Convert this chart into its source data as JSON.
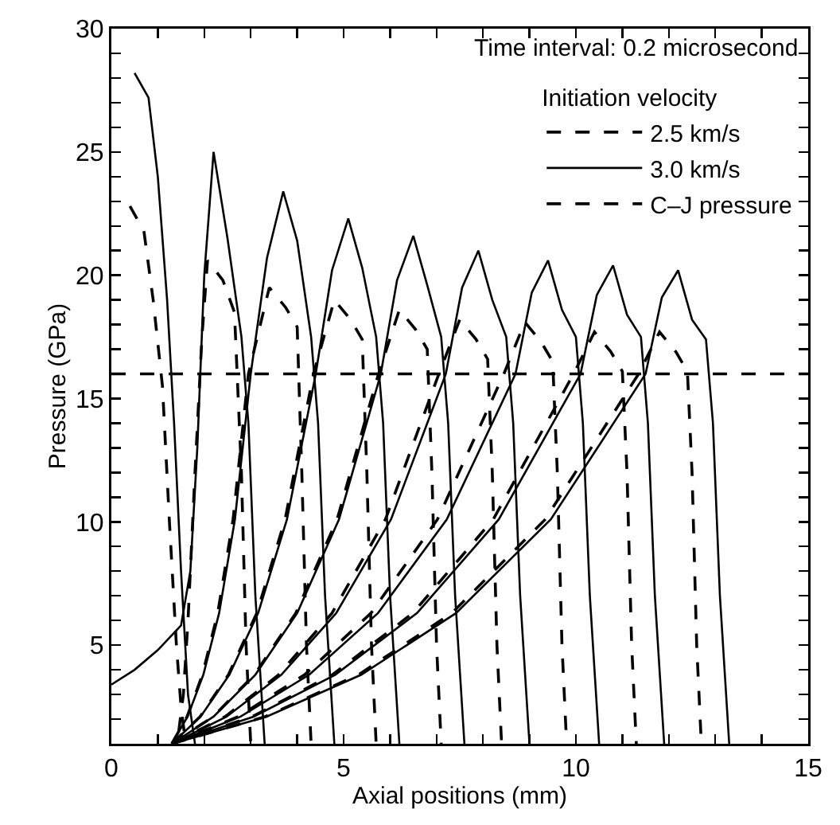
{
  "chart_data": {
    "type": "line",
    "xlabel": "Axial positions (mm)",
    "ylabel": "Pressure (GPa)",
    "legend_title": "Initiation velocity",
    "legend": "top right",
    "grid": false,
    "marker": "none",
    "annotations": [
      "Time interval: 0.2 microsecond"
    ],
    "xlim": [
      0,
      15
    ],
    "ylim": [
      1,
      30
    ],
    "xticks": [
      0,
      {
        "value": 1,
        "label": null
      },
      {
        "value": 2,
        "label": null
      },
      {
        "value": 3,
        "label": null
      },
      {
        "value": 4,
        "label": null
      },
      5,
      {
        "value": 6,
        "label": null
      },
      {
        "value": 7,
        "label": null
      },
      {
        "value": 8,
        "label": null
      },
      {
        "value": 9,
        "label": null
      },
      10,
      {
        "value": 11,
        "label": null
      },
      {
        "value": 12,
        "label": null
      },
      {
        "value": 13,
        "label": null
      },
      {
        "value": 14,
        "label": null
      },
      15
    ],
    "yticks": [
      {
        "value": 2,
        "label": null
      },
      {
        "value": 3,
        "label": null
      },
      {
        "value": 4,
        "label": null
      },
      5,
      {
        "value": 6,
        "label": null
      },
      {
        "value": 7,
        "label": null
      },
      {
        "value": 8,
        "label": null
      },
      {
        "value": 9,
        "label": null
      },
      10,
      {
        "value": 11,
        "label": null
      },
      {
        "value": 12,
        "label": null
      },
      {
        "value": 13,
        "label": null
      },
      {
        "value": 14,
        "label": null
      },
      15,
      {
        "value": 16,
        "label": null
      },
      {
        "value": 17,
        "label": null
      },
      {
        "value": 18,
        "label": null
      },
      {
        "value": 19,
        "label": null
      },
      20,
      {
        "value": 21,
        "label": null
      },
      {
        "value": 22,
        "label": null
      },
      {
        "value": 23,
        "label": null
      },
      {
        "value": 24,
        "label": null
      },
      25,
      {
        "value": 26,
        "label": null
      },
      {
        "value": 27,
        "label": null
      },
      {
        "value": 28,
        "label": null
      },
      {
        "value": 29,
        "label": null
      },
      30
    ],
    "series": [
      {
        "name": "2.5 km/s",
        "color": "#000000",
        "line_style": "dashed",
        "x": [
          0.4,
          0.7,
          0.9,
          1.1,
          1.25,
          1.4,
          1.5,
          1.6
        ],
        "values": [
          22.8,
          21.8,
          19,
          15.5,
          10,
          5,
          2.5,
          1
        ]
      },
      {
        "color": "#000000",
        "line_style": "dashed",
        "x": [
          1.45,
          1.55,
          1.65,
          1.8,
          1.95,
          2.07,
          2.4,
          2.65,
          2.8,
          2.9,
          3.0
        ],
        "values": [
          1.5,
          3,
          6,
          12,
          17.5,
          20.6,
          19.8,
          18.5,
          12,
          5,
          1
        ]
      },
      {
        "color": "#000000",
        "line_style": "dashed",
        "x": [
          1.3,
          1.63,
          1.96,
          2.29,
          2.62,
          2.95,
          3.4,
          3.75,
          4.0,
          4.1,
          4.2,
          4.3
        ],
        "values": [
          1,
          2.1,
          3.8,
          6.3,
          10.1,
          16,
          19.5,
          18.7,
          17.9,
          12,
          5,
          1
        ]
      },
      {
        "color": "#000000",
        "line_style": "dashed",
        "x": [
          1.3,
          1.91,
          2.52,
          3.13,
          3.74,
          4.35,
          4.8,
          5.15,
          5.4,
          5.5,
          5.6,
          5.7
        ],
        "values": [
          1,
          2.1,
          3.8,
          6.3,
          10.1,
          16,
          19.0,
          18.2,
          17.4,
          12,
          5,
          1
        ]
      },
      {
        "color": "#000000",
        "line_style": "dashed",
        "x": [
          1.3,
          2.19,
          3.08,
          3.97,
          4.86,
          5.75,
          6.2,
          6.55,
          6.8,
          6.9,
          7.0,
          7.1
        ],
        "values": [
          1,
          2.1,
          3.8,
          6.3,
          10.1,
          16,
          18.6,
          17.8,
          17.0,
          12,
          5,
          1
        ]
      },
      {
        "color": "#000000",
        "line_style": "dashed",
        "x": [
          1.3,
          2.45,
          3.6,
          4.75,
          5.9,
          7.05,
          7.5,
          7.85,
          8.1,
          8.2,
          8.3,
          8.4
        ],
        "values": [
          1,
          2.1,
          3.8,
          6.3,
          10.1,
          16,
          18.2,
          17.4,
          16.6,
          12,
          5,
          1
        ]
      },
      {
        "color": "#000000",
        "line_style": "dashed",
        "x": [
          1.3,
          2.73,
          4.16,
          5.59,
          7.02,
          8.45,
          8.9,
          9.25,
          9.5,
          9.6,
          9.7,
          9.8
        ],
        "values": [
          1,
          2.1,
          3.8,
          6.3,
          10.1,
          16,
          18.1,
          17.3,
          16.5,
          12,
          5,
          1
        ]
      },
      {
        "color": "#000000",
        "line_style": "dashed",
        "x": [
          1.3,
          3.03,
          4.76,
          6.49,
          8.22,
          9.95,
          10.4,
          10.75,
          11.0,
          11.1,
          11.2,
          11.3
        ],
        "values": [
          1,
          2.1,
          3.8,
          6.3,
          10.1,
          16,
          17.7,
          16.9,
          16.1,
          12,
          5,
          1
        ]
      },
      {
        "color": "#000000",
        "line_style": "dashed",
        "x": [
          1.3,
          3.31,
          5.32,
          7.33,
          9.34,
          11.35,
          11.8,
          12.15,
          12.4,
          12.5,
          12.6,
          12.7
        ],
        "values": [
          1,
          2.1,
          3.8,
          6.3,
          10.1,
          16,
          17.7,
          16.9,
          16.1,
          12,
          5,
          1
        ]
      },
      {
        "name": "3.0 km/s",
        "color": "#000000",
        "line_style": "solid",
        "x": [
          0.5,
          0.8,
          1.0,
          1.2,
          1.35,
          1.5,
          1.65,
          1.8
        ],
        "values": [
          28.2,
          27.2,
          24,
          19,
          14,
          8,
          3,
          1
        ]
      },
      {
        "color": "#000000",
        "line_style": "solid",
        "x": [
          0,
          0.5,
          1.0,
          1.5,
          1.7,
          1.85,
          2.0,
          2.2,
          2.5,
          2.8,
          2.95,
          3.1,
          3.3
        ],
        "values": [
          3.4,
          4.0,
          4.8,
          5.8,
          8,
          13,
          20,
          25,
          21.5,
          17.5,
          14,
          7,
          1
        ]
      },
      {
        "color": "#000000",
        "line_style": "solid",
        "x": [
          1.3,
          1.64,
          1.98,
          2.32,
          2.66,
          3.0,
          3.35,
          3.7,
          4.0,
          4.3,
          4.45,
          4.6,
          4.8
        ],
        "values": [
          1,
          2.1,
          3.8,
          6.3,
          10.1,
          16,
          20.7,
          23.4,
          21.4,
          17.5,
          14,
          7,
          1
        ]
      },
      {
        "color": "#000000",
        "line_style": "solid",
        "x": [
          1.3,
          1.92,
          2.54,
          3.16,
          3.78,
          4.4,
          4.75,
          5.1,
          5.4,
          5.7,
          5.85,
          6.0,
          6.2
        ],
        "values": [
          1,
          2.1,
          3.8,
          6.3,
          10.1,
          16,
          20.2,
          22.3,
          20.3,
          17.5,
          14,
          7,
          1
        ]
      },
      {
        "color": "#000000",
        "line_style": "solid",
        "x": [
          1.3,
          2.2,
          3.1,
          4.0,
          4.9,
          5.8,
          6.15,
          6.5,
          6.8,
          7.1,
          7.25,
          7.4,
          7.6
        ],
        "values": [
          1,
          2.1,
          3.8,
          6.3,
          10.1,
          16,
          19.8,
          21.6,
          19.6,
          17.5,
          14,
          7,
          1
        ]
      },
      {
        "color": "#000000",
        "line_style": "solid",
        "x": [
          1.3,
          2.48,
          3.66,
          4.84,
          6.02,
          7.2,
          7.55,
          7.9,
          8.2,
          8.5,
          8.65,
          8.8,
          9.0
        ],
        "values": [
          1,
          2.1,
          3.8,
          6.3,
          10.1,
          16,
          19.5,
          21.0,
          19.0,
          17.5,
          14,
          7,
          1
        ]
      },
      {
        "color": "#000000",
        "line_style": "solid",
        "x": [
          1.3,
          2.78,
          4.26,
          5.74,
          7.22,
          8.7,
          9.05,
          9.4,
          9.7,
          10.0,
          10.15,
          10.3,
          10.5
        ],
        "values": [
          1,
          2.1,
          3.8,
          6.3,
          10.1,
          16,
          19.3,
          20.6,
          18.6,
          17.5,
          14,
          7,
          1
        ]
      },
      {
        "color": "#000000",
        "line_style": "solid",
        "x": [
          1.3,
          3.06,
          4.82,
          6.58,
          8.34,
          10.1,
          10.45,
          10.8,
          11.1,
          11.4,
          11.55,
          11.7,
          11.9
        ],
        "values": [
          1,
          2.1,
          3.8,
          6.3,
          10.1,
          16,
          19.2,
          20.4,
          18.4,
          17.5,
          14,
          7,
          1
        ]
      },
      {
        "color": "#000000",
        "line_style": "solid",
        "x": [
          1.3,
          3.34,
          5.38,
          7.42,
          9.46,
          11.5,
          11.85,
          12.2,
          12.5,
          12.8,
          12.95,
          13.1,
          13.3
        ],
        "values": [
          1,
          2.1,
          3.8,
          6.3,
          10.1,
          16,
          19.1,
          20.2,
          18.2,
          17.4,
          14,
          7,
          1
        ]
      },
      {
        "name": "C–J pressure",
        "color": "#000000",
        "line_style": "dashed",
        "x": [
          0,
          15
        ],
        "values": [
          16,
          16
        ]
      }
    ]
  }
}
